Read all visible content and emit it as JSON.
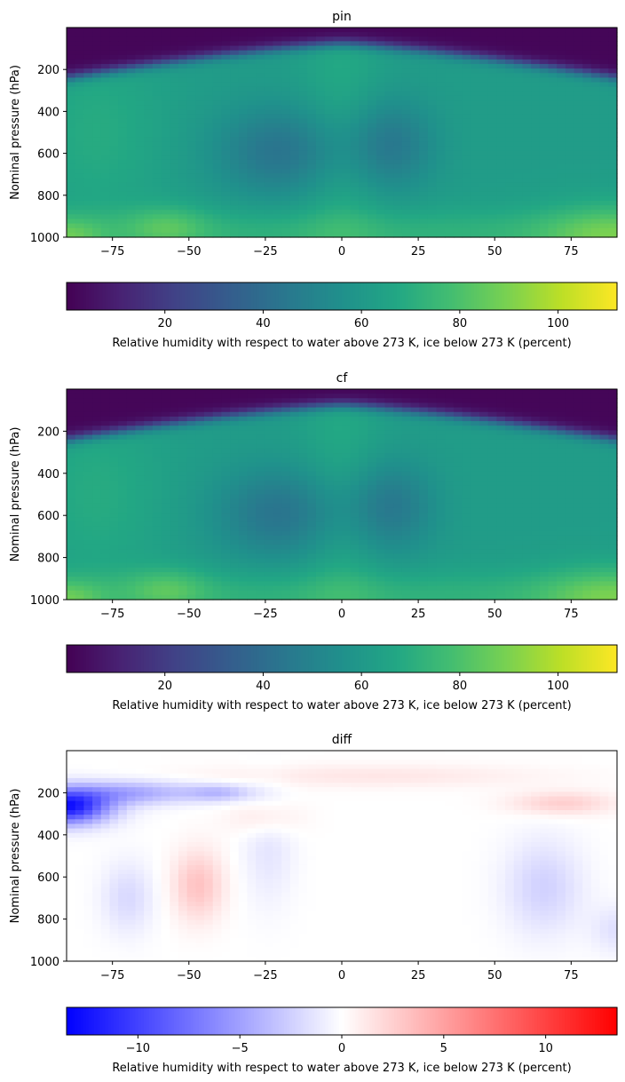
{
  "chart_data": [
    {
      "type": "heatmap",
      "title": "pin",
      "ylabel": "Nominal pressure (hPa)",
      "xlim": [
        -90,
        90
      ],
      "ylim": [
        1000,
        0
      ],
      "xticks": [
        -75,
        -50,
        -25,
        0,
        25,
        50,
        75
      ],
      "yticks": [
        200,
        400,
        600,
        800,
        1000
      ],
      "colormap": "viridis",
      "colorbar": {
        "label": "Relative humidity with respect to water above 273 K, ice below 273 K (percent)",
        "range": [
          0,
          112
        ],
        "ticks": [
          20,
          40,
          60,
          80,
          100
        ],
        "orientation": "horizontal"
      },
      "features": "dry upper levels (<5%) above ~150 hPa near equator and ~250 hPa poleward; subtropical minima ~40% centred near -20 and +15 latitude at 400-800 hPa; equatorial moist column ~60-70%; boundary layer 80-110%, highest near poles at surface"
    },
    {
      "type": "heatmap",
      "title": "cf",
      "ylabel": "Nominal pressure (hPa)",
      "xlim": [
        -90,
        90
      ],
      "ylim": [
        1000,
        0
      ],
      "xticks": [
        -75,
        -50,
        -25,
        0,
        25,
        50,
        75
      ],
      "yticks": [
        200,
        400,
        600,
        800,
        1000
      ],
      "colormap": "viridis",
      "colorbar": {
        "label": "Relative humidity with respect to water above 273 K, ice below 273 K (percent)",
        "range": [
          0,
          112
        ],
        "ticks": [
          20,
          40,
          60,
          80,
          100
        ],
        "orientation": "horizontal"
      },
      "features": "nearly identical to pin"
    },
    {
      "type": "heatmap",
      "title": "diff",
      "ylabel": "Nominal pressure (hPa)",
      "xlim": [
        -90,
        90
      ],
      "ylim": [
        1000,
        0
      ],
      "xticks": [
        -75,
        -50,
        -25,
        0,
        25,
        50,
        75
      ],
      "yticks": [
        200,
        400,
        600,
        800,
        1000
      ],
      "colormap": "bwr",
      "colorbar": {
        "label": "Relative humidity with respect to water above 273 K, ice below 273 K (percent)",
        "range": [
          -13.5,
          13.5
        ],
        "ticks": [
          -10,
          -5,
          0,
          5,
          10
        ],
        "orientation": "horizontal"
      },
      "features": "strong negative (~-12) near -90..-70 lat at 200-350 hPa; weak positive (~+3) near -50 lat at 500-800 hPa and near 70 lat at 250 hPa; weak negative (~-2) near 60-70 lat at 500-800 hPa; mostly near zero elsewhere"
    }
  ]
}
